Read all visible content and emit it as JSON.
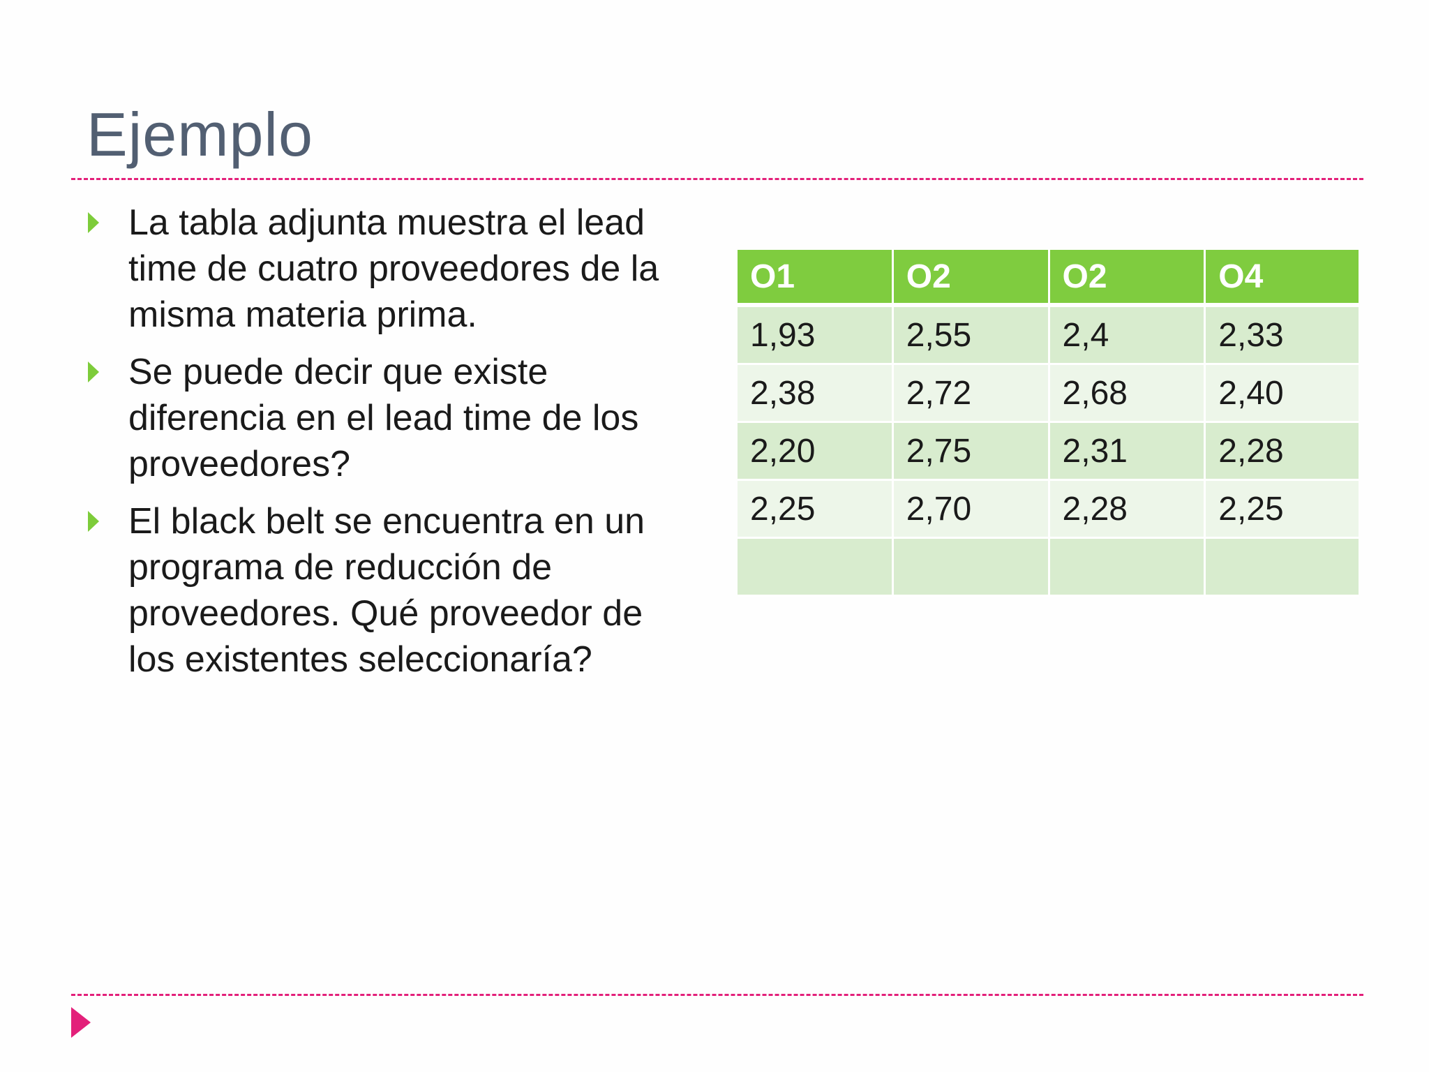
{
  "title": "Ejemplo",
  "bullets": [
    "La tabla adjunta muestra el lead time de cuatro proveedores de la misma materia prima.",
    "Se puede decir que existe diferencia en el lead time de los proveedores?",
    "El black belt se encuentra en un programa de reducción de proveedores.  Qué proveedor de los existentes seleccionaría?"
  ],
  "table": {
    "headers": [
      "O1",
      "O2",
      "O2",
      "O4"
    ],
    "rows": [
      [
        "1,93",
        "2,55",
        "2,4",
        "2,33"
      ],
      [
        "2,38",
        "2,72",
        "2,68",
        "2,40"
      ],
      [
        "2,20",
        "2,75",
        "2,31",
        "2,28"
      ],
      [
        "2,25",
        "2,70",
        "2,28",
        "2,25"
      ],
      [
        "",
        "",
        "",
        ""
      ]
    ]
  },
  "colors": {
    "title": "#525f72",
    "accent_pink": "#e3207a",
    "bullet_green": "#7dcc3a",
    "header_green": "#7fcc3f",
    "row_dark": "#d8ecce",
    "row_light": "#edf6e9"
  },
  "icons": {
    "bullet": "triangle-right-icon",
    "footer": "triangle-right-icon"
  }
}
